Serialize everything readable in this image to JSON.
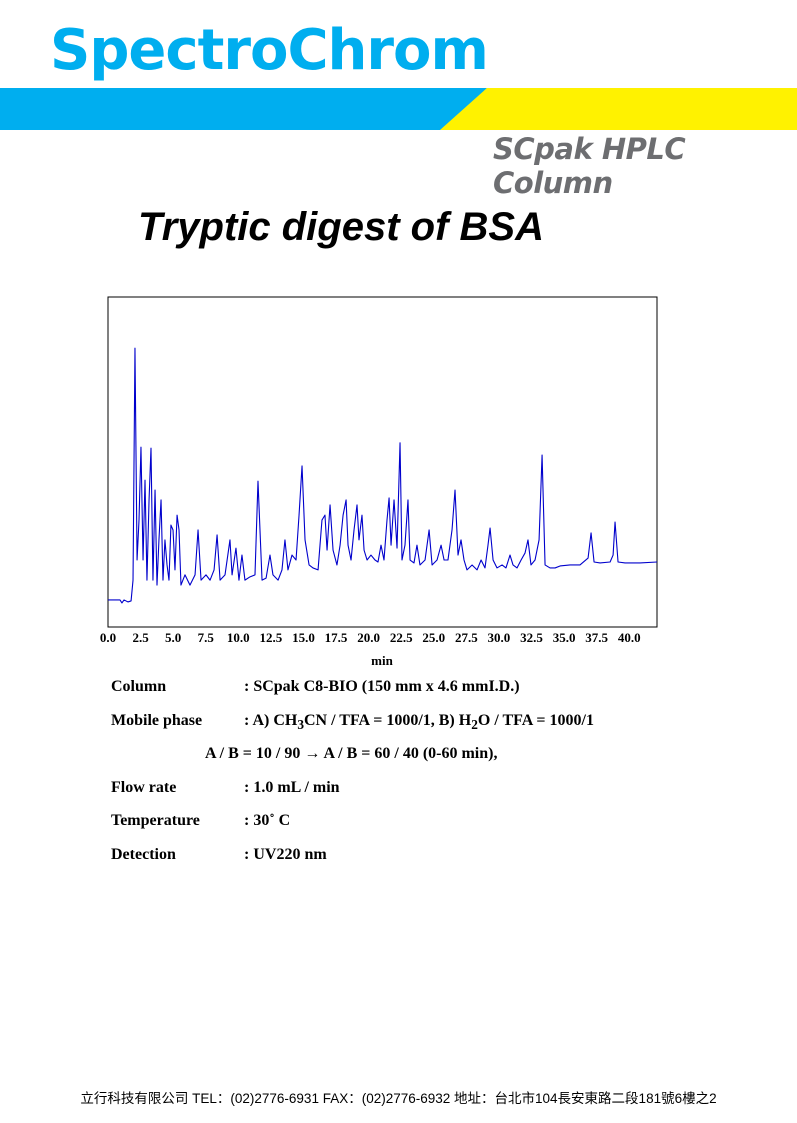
{
  "header": {
    "brand": "SpectroChrom",
    "subtitle": "SCpak HPLC Column"
  },
  "title": "Tryptic digest of BSA",
  "chart_data": {
    "type": "line",
    "color": "#0000cc",
    "xlabel": "min",
    "xlim": [
      0,
      42.13
    ],
    "ylim": [
      0,
      100
    ],
    "xticks": [
      {
        "value": 0,
        "label": "0.0"
      },
      2.5,
      {
        "value": 5,
        "label": "5.0"
      },
      7.5,
      {
        "value": 10,
        "label": "10.0"
      },
      12.5,
      {
        "value": 15,
        "label": "15.0"
      },
      17.5,
      {
        "value": 20,
        "label": "20.0"
      },
      22.5,
      {
        "value": 25,
        "label": "25.0"
      },
      27.5,
      {
        "value": 30,
        "label": "30.0"
      },
      32.5,
      {
        "value": 35,
        "label": "35.0"
      },
      37.5,
      {
        "value": 40,
        "label": "40.0"
      }
    ],
    "x": [
      0,
      0.92,
      1.07,
      1.23,
      1.53,
      1.77,
      1.92,
      2.07,
      2.23,
      2.38,
      2.53,
      2.69,
      2.84,
      2.99,
      3.15,
      3.3,
      3.45,
      3.61,
      3.76,
      3.91,
      4.07,
      4.22,
      4.37,
      4.53,
      4.68,
      4.83,
      4.99,
      5.14,
      5.3,
      5.45,
      5.6,
      5.91,
      6.29,
      6.68,
      6.91,
      7.14,
      7.52,
      7.83,
      8.14,
      8.37,
      8.6,
      8.98,
      9.36,
      9.52,
      9.82,
      10.05,
      10.28,
      10.51,
      10.9,
      11.28,
      11.51,
      11.82,
      12.13,
      12.43,
      12.66,
      13.05,
      13.35,
      13.58,
      13.81,
      14.12,
      14.43,
      14.66,
      14.89,
      15.12,
      15.43,
      15.73,
      16.12,
      16.42,
      16.65,
      16.81,
      17.04,
      17.27,
      17.57,
      17.81,
      18.04,
      18.27,
      18.42,
      18.65,
      18.88,
      19.11,
      19.26,
      19.49,
      19.65,
      19.88,
      20.18,
      20.49,
      20.72,
      20.95,
      21.18,
      21.41,
      21.57,
      21.72,
      21.95,
      22.18,
      22.41,
      22.56,
      22.79,
      23.02,
      23.18,
      23.48,
      23.71,
      23.94,
      24.33,
      24.64,
      24.87,
      25.25,
      25.56,
      25.79,
      26.09,
      26.4,
      26.63,
      26.86,
      27.09,
      27.32,
      27.55,
      27.94,
      28.32,
      28.63,
      28.93,
      29.16,
      29.32,
      29.55,
      29.85,
      30.24,
      30.54,
      30.85,
      31.08,
      31.39,
      31.7,
      32.0,
      32.23,
      32.46,
      32.77,
      33.08,
      33.31,
      33.54,
      33.92,
      34.31,
      34.69,
      35.46,
      36.22,
      36.84,
      37.07,
      37.3,
      37.76,
      38.53,
      38.76,
      38.91,
      39.14,
      39.68,
      40.83,
      42.13
    ],
    "values": [
      8.2,
      8.2,
      7.3,
      8.2,
      7.6,
      7.9,
      14.2,
      84.5,
      20.3,
      32.4,
      54.5,
      20.3,
      44.5,
      14.2,
      38.5,
      54.2,
      14.2,
      41.5,
      12.7,
      26.4,
      38.5,
      14.2,
      26.4,
      18.8,
      14.2,
      30.9,
      29.4,
      17.3,
      33.9,
      29.4,
      12.7,
      15.8,
      12.7,
      15.8,
      29.4,
      14.2,
      15.8,
      14.2,
      17.3,
      27.9,
      14.2,
      15.8,
      26.4,
      15.8,
      23.9,
      14.2,
      21.8,
      14.2,
      15.2,
      15.8,
      44.2,
      14.2,
      14.8,
      21.8,
      15.8,
      14.2,
      17.3,
      26.4,
      17.3,
      21.8,
      20.3,
      33.9,
      48.8,
      26.4,
      18.8,
      17.9,
      17.3,
      32.4,
      33.9,
      23.3,
      37.0,
      23.3,
      18.8,
      24.8,
      33.9,
      38.5,
      24.8,
      20.3,
      29.4,
      37.0,
      26.4,
      33.9,
      23.3,
      20.3,
      21.8,
      20.3,
      19.7,
      24.8,
      20.3,
      32.4,
      39.1,
      24.8,
      38.5,
      23.9,
      55.8,
      20.3,
      24.8,
      38.5,
      20.3,
      19.4,
      24.8,
      18.8,
      20.3,
      29.4,
      18.8,
      20.3,
      24.8,
      20.3,
      20.3,
      29.4,
      41.5,
      21.8,
      26.4,
      20.3,
      17.3,
      18.8,
      17.3,
      20.3,
      17.9,
      24.8,
      30.0,
      20.3,
      17.9,
      18.8,
      17.9,
      21.8,
      18.8,
      17.9,
      20.3,
      22.4,
      26.4,
      18.8,
      20.3,
      26.4,
      52.1,
      18.8,
      17.9,
      17.9,
      18.5,
      18.8,
      18.8,
      20.9,
      28.5,
      19.7,
      19.4,
      19.7,
      21.8,
      31.8,
      19.7,
      19.4,
      19.4,
      19.7
    ]
  },
  "conditions": {
    "column": {
      "label": "Column",
      "value": ": SCpak C8-BIO  (150 mm  x 4.6 mmI.D.)"
    },
    "mobile_phase": {
      "label": "Mobile phase",
      "parts": [
        ": A) CH",
        "3",
        "CN / TFA = 1000/1, B) H",
        "2",
        "O / TFA = 1000/1"
      ],
      "gradient": "A / B = 10 / 90 → A / B = 60 / 40 (0-60 min),"
    },
    "flow_rate": {
      "label": "Flow rate",
      "value": ": 1.0 mL / min"
    },
    "temperature": {
      "label": "Temperature",
      "value": ": 30˚ C"
    },
    "detection": {
      "label": "Detection",
      "value": ": UV220 nm"
    }
  },
  "footer": "立行科技有限公司 TEL：(02)2776-6931  FAX：(02)2776-6932   地址：台北市104長安東路二段181號6樓之2"
}
